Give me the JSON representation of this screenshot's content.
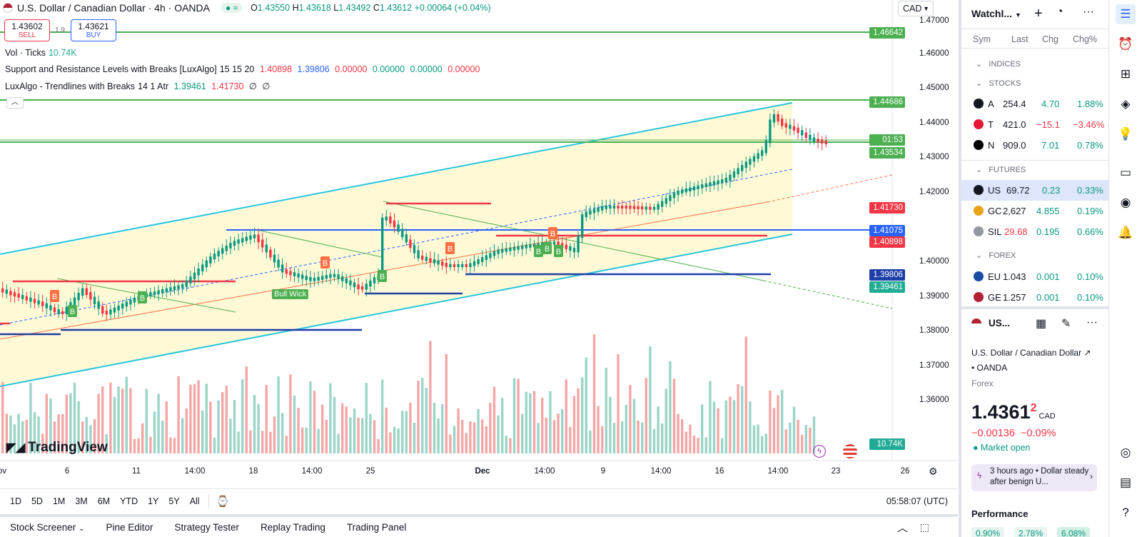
{
  "header": {
    "symbol_title": "U.S. Dollar / Canadian Dollar · 4h · OANDA",
    "ohlc": {
      "o_label": "O",
      "o": "1.43550",
      "h_label": "H",
      "h": "1.43618",
      "l_label": "L",
      "l": "1.43492",
      "c_label": "C",
      "c": "1.43612",
      "change": "+0.00064 (+0.04%)"
    },
    "currency": "CAD",
    "sell_price": "1.43602",
    "sell_label": "SELL",
    "spread": "1.9",
    "buy_price": "1.43621",
    "buy_label": "BUY"
  },
  "indicators": [
    {
      "name": "Vol · Ticks",
      "values": [
        "10.74K"
      ]
    },
    {
      "name": "Support and Resistance Levels with Breaks [LuxAlgo]",
      "params": "15 15 20",
      "values": [
        "1.40898",
        "1.39806",
        "0.00000",
        "0.00000",
        "0.00000",
        "0.00000"
      ]
    },
    {
      "name": "LuxAlgo - Trendlines with Breaks",
      "params": "14 1 Atr",
      "values": [
        "1.39461",
        "1.41730",
        "∅",
        "∅"
      ]
    }
  ],
  "price_axis": [
    "1.47000",
    "1.46000",
    "1.45000",
    "1.44000",
    "1.43000",
    "1.42000",
    "1.40000",
    "1.39000",
    "1.38000",
    "1.37000",
    "1.36000"
  ],
  "price_labels": [
    {
      "text": "1.46642",
      "color": "#4caf50"
    },
    {
      "text": "1.44686",
      "color": "#4caf50"
    },
    {
      "text": "01:53",
      "color": "#4caf50"
    },
    {
      "text": "1.43534",
      "color": "#4caf50"
    },
    {
      "text": "1.41730",
      "color": "#f23645"
    },
    {
      "text": "1.41075",
      "color": "#2962ff"
    },
    {
      "text": "1.40898",
      "color": "#f23645"
    },
    {
      "text": "1.39806",
      "color": "#1e3ea8"
    },
    {
      "text": "1.39461",
      "color": "#22ab94"
    },
    {
      "text": "10.74K",
      "color": "#22ab94"
    }
  ],
  "date_axis": [
    "ov",
    "6",
    "11",
    "14:00",
    "18",
    "14:00",
    "25",
    "Dec",
    "14:00",
    "9",
    "14:00",
    "16",
    "14:00",
    "23",
    "26"
  ],
  "chart_labels": {
    "bull_wick": "Bull Wick",
    "break_b": "B",
    "break_r": "B"
  },
  "watermark": "TradingView",
  "range_buttons": [
    "1D",
    "5D",
    "1M",
    "3M",
    "6M",
    "YTD",
    "1Y",
    "5Y",
    "All"
  ],
  "clock": "05:58:07 (UTC)",
  "bottom_tabs": [
    "Stock Screener",
    "Pine Editor",
    "Strategy Tester",
    "Replay Trading",
    "Trading Panel"
  ],
  "watchlist": {
    "title": "Watchl...",
    "columns": [
      "Sym",
      "Last",
      "Chg",
      "Chg%"
    ],
    "sections": {
      "indices": "INDICES",
      "stocks": "STOCKS",
      "futures": "FUTURES",
      "forex": "FOREX"
    },
    "stocks": [
      {
        "sym": "A",
        "last": "254.4",
        "chg": "4.70",
        "chgp": "1.88%",
        "color": "#089981"
      },
      {
        "sym": "T",
        "last": "421.0",
        "chg": "−15.1",
        "chgp": "−3.46%",
        "color": "#f23645"
      },
      {
        "sym": "N",
        "last": "909.0",
        "chg": "7.01",
        "chgp": "0.78%",
        "color": "#089981"
      }
    ],
    "futures": [
      {
        "sym": "US",
        "last": "69.72",
        "chg": "0.23",
        "chgp": "0.33%",
        "color": "#089981"
      },
      {
        "sym": "GC",
        "last": "2,627",
        "chg": "4.855",
        "chgp": "0.19%",
        "color": "#089981"
      },
      {
        "sym": "SIL",
        "last": "29.68",
        "chg": "0.195",
        "chgp": "0.66%",
        "color": "#089981"
      }
    ],
    "forex": [
      {
        "sym": "EU",
        "last": "1.043",
        "chg": "0.001",
        "chgp": "0.10%",
        "color": "#089981"
      },
      {
        "sym": "GE",
        "last": "1.257",
        "chg": "0.001",
        "chgp": "0.10%",
        "color": "#089981"
      }
    ]
  },
  "details": {
    "short": "US...",
    "name": "U.S. Dollar / Canadian Dollar",
    "exchange": "OANDA",
    "type": "Forex",
    "price": "1.4361",
    "price_sup": "2",
    "currency": "CAD",
    "change": "−0.00136",
    "change_pct": "−0.09%",
    "market_status": "Market open",
    "news_time": "3 hours ago",
    "news_text": "Dollar steady after benign U...",
    "performance_title": "Performance",
    "performance": [
      "0.90%",
      "2.78%",
      "6.08%"
    ]
  }
}
